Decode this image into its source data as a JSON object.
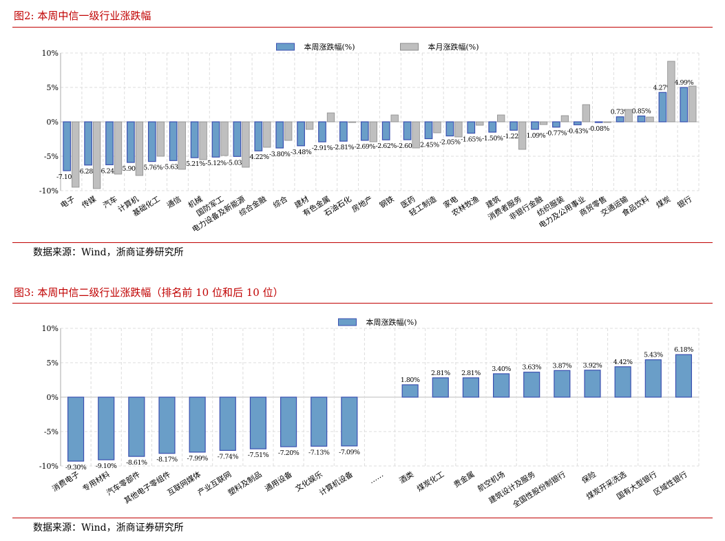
{
  "figures": [
    {
      "title": "图2:   本周中信一级行业涨跌幅",
      "source": "数据来源：Wind，浙商证券研究所"
    },
    {
      "title": "图3:   本周中信二级行业涨跌幅（排名前 10 位和后 10 位）",
      "source": "数据来源：Wind，浙商证券研究所"
    }
  ],
  "chart_data": [
    {
      "type": "bar",
      "title": "",
      "xlabel": "",
      "ylabel": "",
      "ylim": [
        -10,
        10
      ],
      "yticks": [
        "-10%",
        "-5%",
        "0%",
        "5%",
        "10%"
      ],
      "yticks_values": [
        -10,
        -5,
        0,
        5,
        10
      ],
      "grid": true,
      "legend": "top-center",
      "categories": [
        "电子",
        "传媒",
        "汽车",
        "计算机",
        "基础化工",
        "通信",
        "机械",
        "国防军工",
        "电力设备及新能源",
        "综合金融",
        "综合",
        "建材",
        "有色金属",
        "石油石化",
        "房地产",
        "钢铁",
        "医药",
        "轻工制造",
        "家电",
        "农林牧渔",
        "建筑",
        "消费者服务",
        "非银行金融",
        "纺织服装",
        "电力及公用事业",
        "商贸零售",
        "交通运输",
        "食品饮料",
        "煤炭",
        "银行"
      ],
      "series": [
        {
          "name": "本周涨跌幅(%)",
          "color": "#6a9ec8",
          "edge": "#3a4fb0",
          "values": [
            -7.1,
            -6.28,
            -6.24,
            -5.9,
            -5.76,
            -5.63,
            -5.21,
            -5.12,
            -5.03,
            -4.22,
            -3.8,
            -3.48,
            -2.91,
            -2.81,
            -2.69,
            -2.62,
            -2.6,
            -2.45,
            -2.05,
            -1.65,
            -1.5,
            -1.22,
            -1.09,
            -0.77,
            -0.43,
            -0.08,
            0.73,
            0.85,
            4.27,
            4.99
          ],
          "labels": [
            "-7.10%",
            "-6.28%",
            "-6.24%",
            "-5.90%",
            "-5.76%",
            "-5.63%",
            "-5.21%",
            "-5.12%",
            "-5.03%",
            "-4.22%",
            "-3.80%",
            "-3.48%",
            "-2.91%",
            "-2.81%",
            "-2.69%",
            "-2.62%",
            "-2.60%",
            "-2.45%",
            "-2.05%",
            "-1.65%",
            "-1.50%",
            "-1.22%",
            "-1.09%",
            "-0.77%",
            "-0.43%",
            "-0.08%",
            "0.73%",
            "0.85%",
            "4.27%",
            "4.99%"
          ]
        },
        {
          "name": "本月涨跌幅(%)",
          "color": "#bfbfbf",
          "edge": "#8c8c8c",
          "values": [
            -9.5,
            -9.7,
            -7.6,
            -7.8,
            -5.0,
            -6.9,
            -5.5,
            -4.9,
            -6.6,
            -3.7,
            -2.7,
            -1.1,
            1.3,
            -0.1,
            -2.9,
            1.0,
            -3.8,
            -1.6,
            -2.2,
            -0.5,
            1.0,
            -4.0,
            -0.4,
            0.9,
            2.5,
            -0.05,
            1.8,
            0.7,
            8.8,
            5.2
          ]
        }
      ]
    },
    {
      "type": "bar",
      "title": "",
      "xlabel": "",
      "ylabel": "",
      "ylim": [
        -10,
        10
      ],
      "yticks": [
        "-10%",
        "-5%",
        "0%",
        "5%",
        "10%"
      ],
      "yticks_values": [
        -10,
        -5,
        0,
        5,
        10
      ],
      "grid": true,
      "legend": "top-center",
      "categories": [
        "消费电子",
        "专用材料",
        "汽车零部件",
        "其他电子零组件",
        "互联网媒体",
        "产业互联网",
        "塑料及制品",
        "通用设备",
        "文化娱乐",
        "计算机设备",
        "……",
        "酒类",
        "煤炭化工",
        "贵金属",
        "航空机场",
        "建筑设计及服务",
        "全国性股份制银行",
        "保险",
        "煤炭开采洗选",
        "国有大型银行",
        "区域性银行"
      ],
      "series": [
        {
          "name": "本周涨跌幅(%)",
          "color": "#6a9ec8",
          "edge": "#3a4fb0",
          "values": [
            -9.3,
            -9.1,
            -8.61,
            -8.17,
            -7.99,
            -7.74,
            -7.51,
            -7.2,
            -7.13,
            -7.09,
            null,
            1.8,
            2.81,
            2.81,
            3.4,
            3.63,
            3.87,
            3.92,
            4.42,
            5.43,
            6.18
          ],
          "labels": [
            "-9.30%",
            "-9.10%",
            "-8.61%",
            "-8.17%",
            "-7.99%",
            "-7.74%",
            "-7.51%",
            "-7.20%",
            "-7.13%",
            "-7.09%",
            "",
            "1.80%",
            "2.81%",
            "2.81%",
            "3.40%",
            "3.63%",
            "3.87%",
            "3.92%",
            "4.42%",
            "5.43%",
            "6.18%"
          ]
        }
      ]
    }
  ]
}
